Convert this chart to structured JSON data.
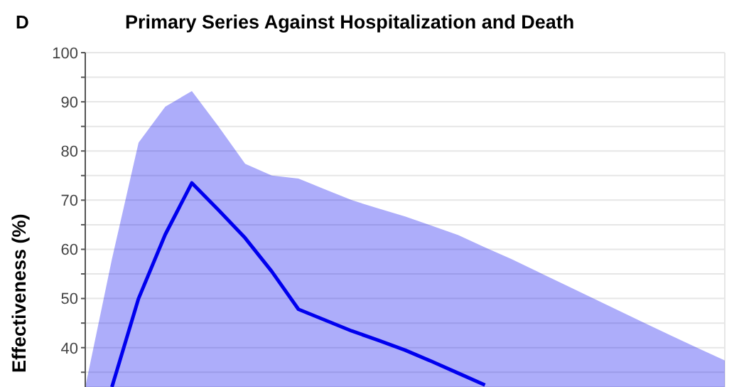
{
  "chart_data": {
    "type": "line",
    "title": "Primary Series Against Hospitalization and Death",
    "ylabel": "Effectiveness (%)",
    "annotations": [
      "D"
    ],
    "categories": [
      null,
      null,
      null,
      null,
      null,
      null,
      null,
      null,
      null,
      null,
      null,
      null,
      null,
      null,
      null,
      null,
      null,
      null,
      null,
      null,
      null,
      null,
      null,
      null,
      null
    ],
    "series": [
      {
        "color": "#0000ee",
        "values": [
          null,
          32,
          50,
          63,
          73.5,
          68,
          62.3,
          55.5,
          47.8,
          45.6,
          43.4,
          41.5,
          39.5,
          37.2,
          34.8,
          32.4,
          null,
          null,
          null,
          null,
          null,
          null,
          null,
          null,
          null
        ],
        "lower": [
          32,
          32,
          32,
          32,
          32,
          32,
          32,
          32,
          32,
          32,
          32,
          32,
          32,
          32,
          32,
          32,
          32,
          32,
          32,
          32,
          32,
          32,
          32,
          32,
          32
        ],
        "upper": [
          32,
          58,
          81.7,
          89,
          92.2,
          85,
          77.4,
          75,
          74.4,
          72.2,
          70,
          68.3,
          66.7,
          64.8,
          62.9,
          60.4,
          58,
          55.4,
          52.8,
          50.2,
          47.6,
          45,
          42.4,
          39.9,
          37.4
        ]
      }
    ],
    "ylim": [
      32,
      100
    ],
    "yticks": [
      {
        "value": 35,
        "label": null
      },
      40,
      {
        "value": 45,
        "label": null
      },
      50,
      {
        "value": 55,
        "label": null
      },
      60,
      {
        "value": 65,
        "label": null
      },
      70,
      {
        "value": 75,
        "label": null
      },
      80,
      {
        "value": 85,
        "label": null
      },
      90,
      {
        "value": 95,
        "label": null
      },
      100
    ],
    "tick_labels": "y",
    "grid": true,
    "legend": false,
    "marker": "none",
    "line_style": "solid"
  }
}
